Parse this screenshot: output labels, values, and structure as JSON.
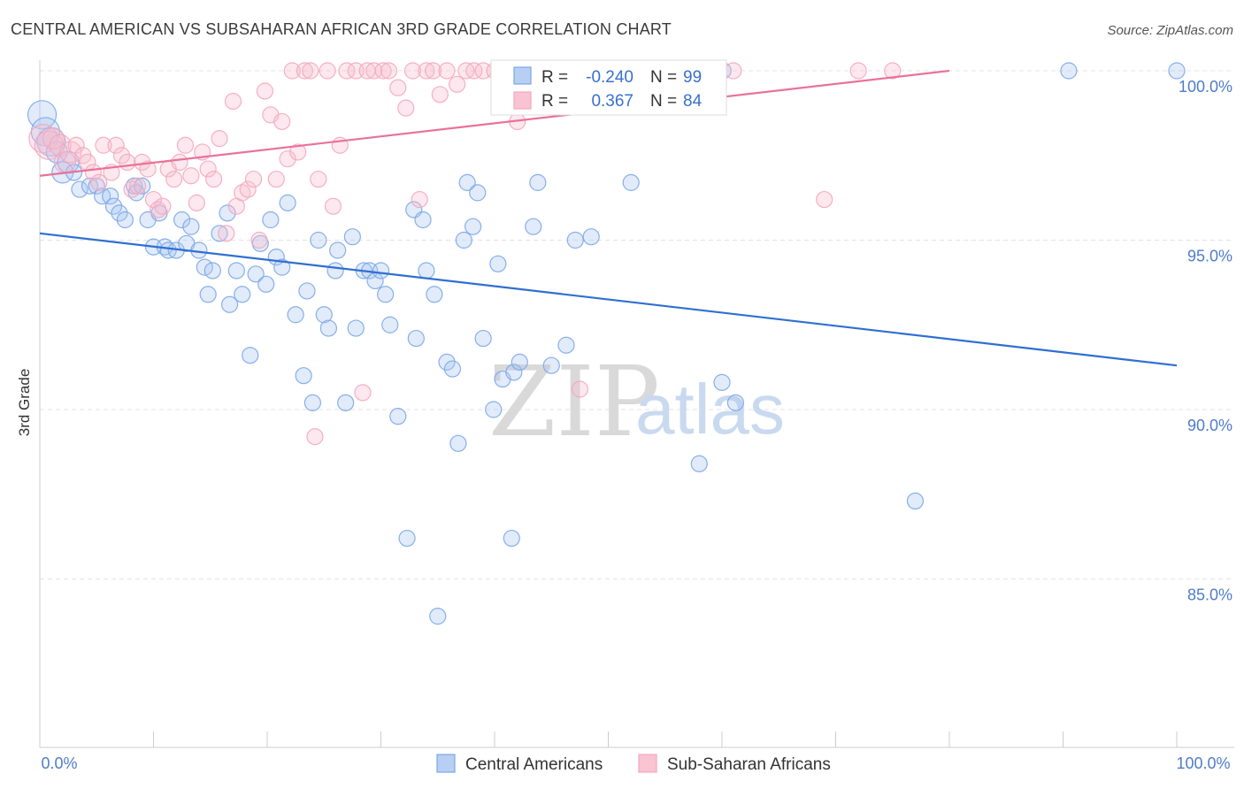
{
  "title": "CENTRAL AMERICAN VS SUBSAHARAN AFRICAN 3RD GRADE CORRELATION CHART",
  "source": "Source: ZipAtlas.com",
  "watermark": {
    "zip": "ZIP",
    "atlas": "atlas"
  },
  "colors": {
    "blue": "#7ba7e8",
    "blue_line": "#2f6fd1",
    "pink": "#f4a7bd",
    "pink_line": "#e8739a",
    "grid": "#e3e3e3",
    "tick_text": "#4f7cc9"
  },
  "legend_box": {
    "rows": [
      {
        "r_label": "R =",
        "r_value": "-0.240",
        "n_label": "N =",
        "n_value": "99"
      },
      {
        "r_label": "R =",
        "r_value": "0.367",
        "n_label": "N =",
        "n_value": "84"
      }
    ]
  },
  "chart_data": {
    "type": "scatter",
    "title": "CENTRAL AMERICAN VS SUBSAHARAN AFRICAN 3RD GRADE CORRELATION CHART",
    "xlabel": "",
    "ylabel": "3rd Grade",
    "xlim": [
      0,
      100
    ],
    "ylim": [
      80.8,
      100.8
    ],
    "x_tick_labels": [
      "0.0%",
      "100.0%"
    ],
    "y_ticks": [
      85,
      90,
      95,
      100
    ],
    "y_tick_labels": [
      "85.0%",
      "90.0%",
      "95.0%",
      "100.0%"
    ],
    "grid": true,
    "legend_position": "bottom-center",
    "series": [
      {
        "name": "Central Americans",
        "color": "#7ba7e8",
        "r": -0.24,
        "n": 99,
        "trend": {
          "x": [
            0,
            100
          ],
          "y": [
            95.2,
            91.3
          ]
        },
        "points": [
          [
            0.2,
            98.7
          ],
          [
            0.5,
            98.2
          ],
          [
            1.0,
            97.9
          ],
          [
            1.5,
            97.6
          ],
          [
            2.0,
            97.0
          ],
          [
            2.5,
            97.3
          ],
          [
            3.0,
            97.0
          ],
          [
            3.5,
            96.5
          ],
          [
            4.4,
            96.6
          ],
          [
            5.0,
            96.6
          ],
          [
            5.5,
            96.3
          ],
          [
            6.2,
            96.3
          ],
          [
            6.5,
            96.0
          ],
          [
            7.0,
            95.8
          ],
          [
            7.5,
            95.6
          ],
          [
            8.3,
            96.6
          ],
          [
            8.5,
            96.4
          ],
          [
            9.0,
            96.6
          ],
          [
            9.5,
            95.6
          ],
          [
            10.0,
            94.8
          ],
          [
            10.5,
            95.8
          ],
          [
            11.0,
            94.8
          ],
          [
            11.3,
            94.7
          ],
          [
            12.0,
            94.7
          ],
          [
            12.5,
            95.6
          ],
          [
            12.9,
            94.9
          ],
          [
            13.3,
            95.4
          ],
          [
            14.0,
            94.7
          ],
          [
            14.5,
            94.2
          ],
          [
            14.8,
            93.4
          ],
          [
            15.2,
            94.1
          ],
          [
            15.8,
            95.2
          ],
          [
            16.5,
            95.8
          ],
          [
            16.7,
            93.1
          ],
          [
            17.3,
            94.1
          ],
          [
            17.8,
            93.4
          ],
          [
            18.5,
            91.6
          ],
          [
            19.0,
            94.0
          ],
          [
            19.4,
            94.9
          ],
          [
            19.9,
            93.7
          ],
          [
            20.3,
            95.6
          ],
          [
            20.8,
            94.5
          ],
          [
            21.3,
            94.2
          ],
          [
            21.8,
            96.1
          ],
          [
            22.5,
            92.8
          ],
          [
            23.2,
            91.0
          ],
          [
            23.5,
            93.5
          ],
          [
            24.0,
            90.2
          ],
          [
            24.5,
            95.0
          ],
          [
            25.0,
            92.8
          ],
          [
            25.4,
            92.4
          ],
          [
            26.0,
            94.1
          ],
          [
            26.2,
            94.7
          ],
          [
            26.9,
            90.2
          ],
          [
            27.5,
            95.1
          ],
          [
            27.8,
            92.4
          ],
          [
            28.5,
            94.1
          ],
          [
            29.0,
            94.1
          ],
          [
            29.5,
            93.8
          ],
          [
            30.0,
            94.1
          ],
          [
            30.4,
            93.4
          ],
          [
            30.8,
            92.5
          ],
          [
            31.5,
            89.8
          ],
          [
            32.3,
            86.2
          ],
          [
            32.9,
            95.9
          ],
          [
            33.1,
            92.1
          ],
          [
            33.7,
            95.6
          ],
          [
            34.0,
            94.1
          ],
          [
            34.7,
            93.4
          ],
          [
            35.8,
            91.4
          ],
          [
            36.3,
            91.2
          ],
          [
            36.8,
            89.0
          ],
          [
            37.3,
            95.0
          ],
          [
            37.6,
            96.7
          ],
          [
            38.1,
            95.4
          ],
          [
            38.5,
            96.4
          ],
          [
            39.0,
            92.1
          ],
          [
            39.9,
            90.0
          ],
          [
            40.3,
            94.3
          ],
          [
            40.7,
            90.9
          ],
          [
            41.5,
            86.2
          ],
          [
            41.7,
            91.1
          ],
          [
            42.2,
            91.4
          ],
          [
            43.4,
            95.4
          ],
          [
            43.8,
            96.7
          ],
          [
            45.0,
            91.3
          ],
          [
            46.3,
            91.9
          ],
          [
            47.1,
            95.0
          ],
          [
            48.5,
            95.1
          ],
          [
            52.0,
            96.7
          ],
          [
            53.0,
            100.0
          ],
          [
            58.0,
            88.4
          ],
          [
            60.0,
            90.8
          ],
          [
            60.1,
            100.0
          ],
          [
            61.2,
            90.2
          ],
          [
            77.0,
            87.3
          ],
          [
            90.5,
            100.0
          ],
          [
            100.0,
            100.0
          ],
          [
            35.0,
            83.9
          ]
        ]
      },
      {
        "name": "Sub-Saharan Africans",
        "color": "#f4a7bd",
        "r": 0.367,
        "n": 84,
        "trend": {
          "x": [
            0,
            80
          ],
          "y": [
            96.9,
            100.0
          ]
        },
        "points": [
          [
            0.3,
            98.0
          ],
          [
            0.8,
            97.8
          ],
          [
            1.2,
            98.0
          ],
          [
            1.8,
            97.8
          ],
          [
            2.2,
            97.3
          ],
          [
            2.7,
            97.6
          ],
          [
            3.2,
            97.8
          ],
          [
            3.8,
            97.5
          ],
          [
            4.2,
            97.3
          ],
          [
            4.7,
            97.0
          ],
          [
            5.2,
            96.7
          ],
          [
            5.6,
            97.8
          ],
          [
            6.3,
            97.0
          ],
          [
            6.7,
            97.8
          ],
          [
            7.2,
            97.5
          ],
          [
            7.7,
            97.3
          ],
          [
            8.1,
            96.5
          ],
          [
            8.6,
            96.6
          ],
          [
            9.0,
            97.3
          ],
          [
            9.5,
            97.1
          ],
          [
            10.0,
            96.2
          ],
          [
            10.4,
            95.9
          ],
          [
            10.8,
            96.0
          ],
          [
            11.3,
            97.1
          ],
          [
            11.8,
            96.8
          ],
          [
            12.3,
            97.3
          ],
          [
            12.8,
            97.8
          ],
          [
            13.3,
            96.9
          ],
          [
            13.8,
            96.1
          ],
          [
            14.3,
            97.6
          ],
          [
            14.8,
            97.1
          ],
          [
            15.3,
            96.8
          ],
          [
            15.8,
            98.0
          ],
          [
            16.4,
            95.2
          ],
          [
            17.0,
            99.1
          ],
          [
            17.3,
            96.0
          ],
          [
            17.8,
            96.4
          ],
          [
            18.3,
            96.5
          ],
          [
            18.8,
            96.8
          ],
          [
            19.3,
            95.0
          ],
          [
            19.8,
            99.4
          ],
          [
            20.3,
            98.7
          ],
          [
            20.8,
            96.8
          ],
          [
            21.3,
            98.5
          ],
          [
            21.8,
            97.4
          ],
          [
            22.2,
            100.0
          ],
          [
            22.7,
            97.6
          ],
          [
            23.3,
            100.0
          ],
          [
            23.8,
            100.0
          ],
          [
            24.2,
            89.2
          ],
          [
            24.5,
            96.8
          ],
          [
            25.3,
            100.0
          ],
          [
            25.8,
            96.0
          ],
          [
            26.4,
            97.8
          ],
          [
            27.0,
            100.0
          ],
          [
            27.8,
            100.0
          ],
          [
            28.4,
            90.5
          ],
          [
            28.8,
            100.0
          ],
          [
            29.4,
            100.0
          ],
          [
            30.2,
            100.0
          ],
          [
            30.7,
            100.0
          ],
          [
            31.5,
            99.5
          ],
          [
            32.2,
            98.9
          ],
          [
            32.8,
            100.0
          ],
          [
            33.4,
            96.2
          ],
          [
            34.0,
            100.0
          ],
          [
            34.6,
            100.0
          ],
          [
            35.2,
            99.3
          ],
          [
            35.8,
            100.0
          ],
          [
            36.7,
            99.6
          ],
          [
            37.5,
            100.0
          ],
          [
            38.2,
            100.0
          ],
          [
            39.0,
            100.0
          ],
          [
            40.0,
            100.0
          ],
          [
            41.0,
            100.0
          ],
          [
            42.0,
            98.5
          ],
          [
            43.5,
            100.0
          ],
          [
            45.0,
            100.0
          ],
          [
            47.5,
            90.6
          ],
          [
            56.0,
            100.0
          ],
          [
            61.0,
            100.0
          ],
          [
            69.0,
            96.2
          ],
          [
            72.0,
            100.0
          ],
          [
            75.0,
            100.0
          ]
        ]
      }
    ]
  },
  "bottom_legend": [
    {
      "label": "Central Americans"
    },
    {
      "label": "Sub-Saharan Africans"
    }
  ]
}
